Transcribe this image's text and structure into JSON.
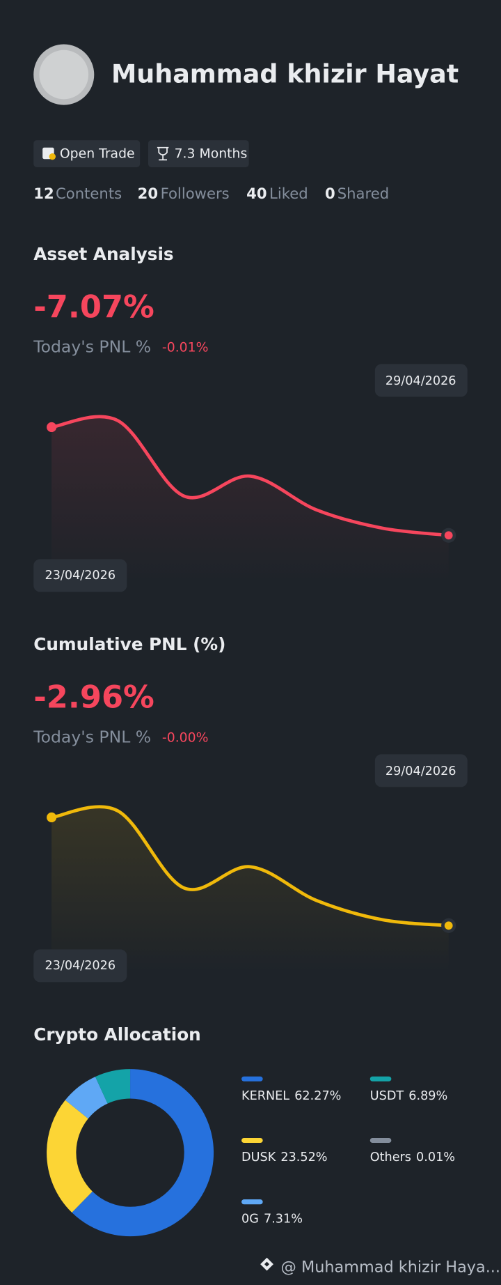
{
  "profile": {
    "name": "Muhammad khizir Hayat",
    "badges": [
      "Open Trade",
      "7.3 Months"
    ],
    "stats": [
      {
        "value": 12,
        "label": "Contents"
      },
      {
        "value": 20,
        "label": "Followers"
      },
      {
        "value": 40,
        "label": "Liked"
      },
      {
        "value": 0,
        "label": "Shared"
      }
    ]
  },
  "asset_analysis": {
    "title": "Asset Analysis",
    "value": "-7.07%",
    "today_label": "Today's PNL %",
    "today_value": "-0.01%",
    "chart": {
      "type": "line",
      "color": "#f6465d",
      "values": [
        0,
        0.43,
        -4.5,
        -3.2,
        -5.4,
        -6.6,
        -7.07
      ],
      "start_label": "23/04/2026",
      "end_label": "29/04/2026"
    }
  },
  "cumulative_pnl": {
    "title": "Cumulative PNL (%)",
    "value": "-2.96%",
    "today_label": "Today's PNL %",
    "today_value": "-0.00%",
    "chart": {
      "type": "line",
      "color": "#f0b90b",
      "values": [
        0,
        0.18,
        -1.93,
        -1.35,
        -2.27,
        -2.8,
        -2.96
      ],
      "start_label": "23/04/2026",
      "end_label": "29/04/2026"
    }
  },
  "allocation": {
    "title": "Crypto Allocation",
    "chart": {
      "type": "donut",
      "categories": [
        "KERNEL",
        "DUSK",
        "0G",
        "USDT",
        "Others"
      ],
      "values": [
        62.27,
        23.52,
        7.31,
        6.89,
        0.01
      ],
      "value_labels": [
        "62.27%",
        "23.52%",
        "7.31%",
        "6.89%",
        "0.01%"
      ],
      "colors": [
        "#2671dd",
        "#fcd535",
        "#5fa8f5",
        "#14a3a8",
        "#848e9c"
      ]
    }
  },
  "footer": {
    "text": "@ Muhammad khizir Haya..."
  }
}
